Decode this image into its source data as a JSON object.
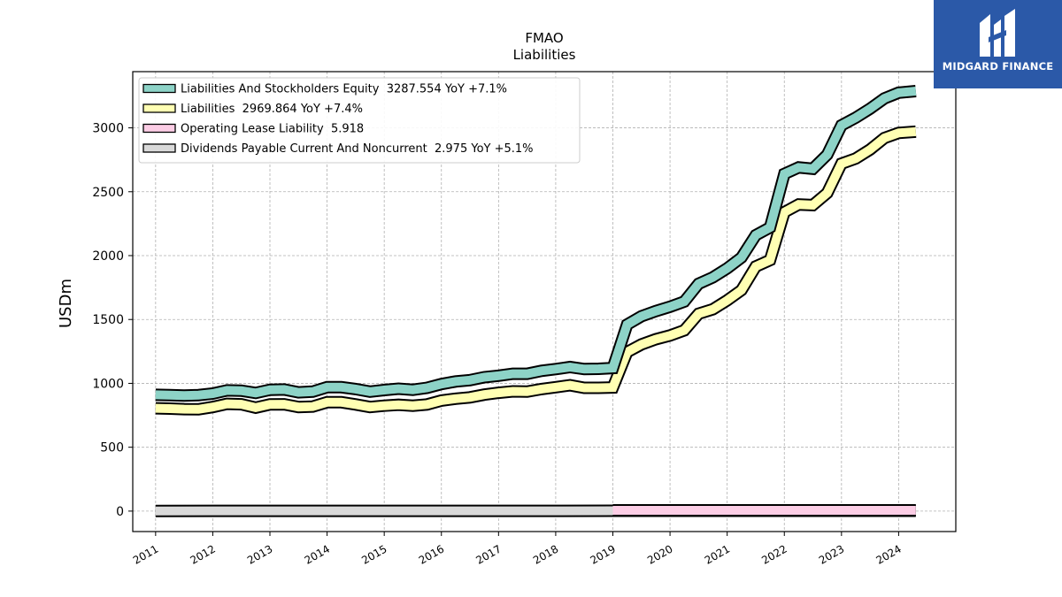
{
  "chart_data": {
    "type": "line",
    "title": "FMAO",
    "subtitle": "Liabilities",
    "ylabel": "USDm",
    "xlabel": "",
    "xlim": [
      2010.6,
      2025.0
    ],
    "ylim": [
      -160,
      3440
    ],
    "yticks": [
      0,
      500,
      1000,
      1500,
      2000,
      2500,
      3000
    ],
    "xticks": [
      2011,
      2012,
      2013,
      2014,
      2015,
      2016,
      2017,
      2018,
      2019,
      2020,
      2021,
      2022,
      2023,
      2024
    ],
    "grid": true,
    "legend_position": "top-left",
    "series": [
      {
        "name": "Liabilities And Stockholders Equity",
        "legend_label": "Liabilities And Stockholders Equity  3287.554 YoY +7.1%",
        "color": "#8dd3c7",
        "x": [
          2011.0,
          2011.25,
          2011.5,
          2011.75,
          2012.0,
          2012.25,
          2012.5,
          2012.75,
          2013.0,
          2013.25,
          2013.5,
          2013.75,
          2014.0,
          2014.25,
          2014.5,
          2014.75,
          2015.0,
          2015.25,
          2015.5,
          2015.75,
          2016.0,
          2016.25,
          2016.5,
          2016.75,
          2017.0,
          2017.25,
          2017.5,
          2017.75,
          2018.0,
          2018.25,
          2018.5,
          2018.75,
          2019.0,
          2019.25,
          2019.5,
          2019.75,
          2020.0,
          2020.25,
          2020.5,
          2020.75,
          2021.0,
          2021.25,
          2021.5,
          2021.75,
          2022.0,
          2022.25,
          2022.5,
          2022.75,
          2023.0,
          2023.25,
          2023.5,
          2023.75,
          2024.0,
          2024.3
        ],
        "values": [
          910,
          908,
          905,
          908,
          920,
          945,
          943,
          925,
          950,
          952,
          930,
          935,
          970,
          970,
          955,
          935,
          948,
          958,
          950,
          965,
          995,
          1015,
          1025,
          1048,
          1060,
          1075,
          1075,
          1098,
          1112,
          1128,
          1112,
          1114,
          1120,
          1460,
          1525,
          1565,
          1600,
          1640,
          1780,
          1830,
          1900,
          1985,
          2160,
          2220,
          2640,
          2690,
          2680,
          2790,
          3020,
          3080,
          3150,
          3230,
          3275,
          3287.554
        ]
      },
      {
        "name": "Liabilities",
        "legend_label": "Liabilities  2969.864 YoY +7.4%",
        "color": "#ffffb3",
        "x": [
          2011.0,
          2011.25,
          2011.5,
          2011.75,
          2012.0,
          2012.25,
          2012.5,
          2012.75,
          2013.0,
          2013.25,
          2013.5,
          2013.75,
          2014.0,
          2014.25,
          2014.5,
          2014.75,
          2015.0,
          2015.25,
          2015.5,
          2015.75,
          2016.0,
          2016.25,
          2016.5,
          2016.75,
          2017.0,
          2017.25,
          2017.5,
          2017.75,
          2018.0,
          2018.25,
          2018.5,
          2018.75,
          2019.0,
          2019.25,
          2019.5,
          2019.75,
          2020.0,
          2020.25,
          2020.5,
          2020.75,
          2021.0,
          2021.25,
          2021.5,
          2021.75,
          2022.0,
          2022.25,
          2022.5,
          2022.75,
          2023.0,
          2023.25,
          2023.5,
          2023.75,
          2024.0,
          2024.3
        ],
        "values": [
          805,
          802,
          798,
          797,
          815,
          840,
          836,
          810,
          835,
          836,
          815,
          818,
          852,
          852,
          835,
          815,
          825,
          832,
          825,
          835,
          865,
          880,
          890,
          912,
          926,
          937,
          935,
          955,
          970,
          985,
          965,
          965,
          968,
          1245,
          1305,
          1345,
          1375,
          1415,
          1545,
          1580,
          1650,
          1730,
          1915,
          1965,
          2340,
          2400,
          2395,
          2490,
          2720,
          2760,
          2830,
          2920,
          2960,
          2969.864
        ]
      },
      {
        "name": "Operating Lease Liability",
        "legend_label": "Operating Lease Liability  5.918",
        "color": "#fccde5",
        "x": [
          2019.0,
          2019.5,
          2020.0,
          2020.5,
          2021.0,
          2021.5,
          2022.0,
          2022.5,
          2023.0,
          2023.5,
          2024.0,
          2024.3
        ],
        "values": [
          6.5,
          6.4,
          6.3,
          6.2,
          6.1,
          6.0,
          6.0,
          5.95,
          5.93,
          5.92,
          5.92,
          5.918
        ]
      },
      {
        "name": "Dividends Payable Current And Noncurrent",
        "legend_label": "Dividends Payable Current And Noncurrent  2.975 YoY +5.1%",
        "color": "#d9d9d9",
        "x": [
          2011.0,
          2012.0,
          2013.0,
          2014.0,
          2015.0,
          2016.0,
          2017.0,
          2018.0,
          2019.0,
          2020.0,
          2021.0,
          2022.0,
          2023.0,
          2024.0,
          2024.3
        ],
        "values": [
          1.6,
          1.7,
          1.8,
          1.9,
          2.0,
          2.1,
          2.2,
          2.3,
          2.4,
          2.5,
          2.6,
          2.7,
          2.8,
          2.9,
          2.975
        ]
      }
    ]
  },
  "logo": {
    "text": "MIDGARD FINANCE",
    "color": "#2b59a8"
  }
}
